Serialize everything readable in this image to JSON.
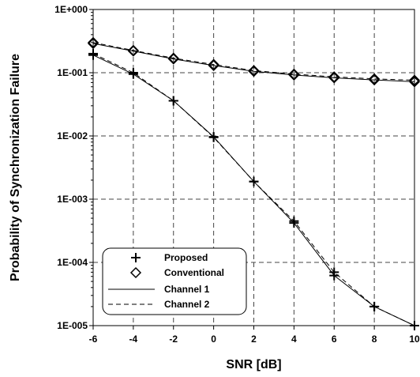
{
  "chart_data": {
    "type": "line",
    "title": "",
    "xlabel": "SNR [dB]",
    "ylabel": "Probability of Synchronization Failure",
    "y_scale": "log",
    "xlim": [
      -6,
      10
    ],
    "ylim": [
      1e-05,
      1
    ],
    "x_ticks": [
      -6,
      -4,
      -2,
      0,
      2,
      4,
      6,
      8,
      10
    ],
    "x_tick_labels": [
      "-6",
      "-4",
      "-2",
      "0",
      "2",
      "4",
      "6",
      "8",
      "10"
    ],
    "y_ticks": [
      1e-05,
      0.0001,
      0.001,
      0.01,
      0.1,
      1
    ],
    "y_tick_labels": [
      "1E-005",
      "1E-004",
      "1E-003",
      "1E-002",
      "1E-001",
      "1E+000"
    ],
    "grid": true,
    "legend_position": "bottom-left",
    "legend": [
      "Proposed",
      "Conventional",
      "Channel 1",
      "Channel 2"
    ],
    "x": [
      -6,
      -4,
      -2,
      0,
      2,
      4,
      6,
      8,
      10
    ],
    "series": [
      {
        "name": "Proposed",
        "channel": "Channel 1",
        "marker": "plus",
        "line": "solid",
        "values": [
          0.19,
          0.095,
          0.036,
          0.0097,
          0.0019,
          0.00042,
          6.2e-05,
          2e-05,
          1e-05
        ]
      },
      {
        "name": "Proposed",
        "channel": "Channel 2",
        "marker": "plus",
        "line": "dashed",
        "values": [
          0.2,
          0.1,
          0.036,
          0.0095,
          0.0019,
          0.00045,
          7e-05,
          2e-05,
          1e-05
        ]
      },
      {
        "name": "Conventional",
        "channel": "Channel 1",
        "marker": "diamond",
        "line": "solid",
        "values": [
          0.29,
          0.22,
          0.165,
          0.13,
          0.105,
          0.092,
          0.083,
          0.077,
          0.072
        ]
      },
      {
        "name": "Conventional",
        "channel": "Channel 2",
        "marker": "diamond",
        "line": "dashed",
        "values": [
          0.3,
          0.225,
          0.17,
          0.135,
          0.108,
          0.095,
          0.086,
          0.08,
          0.076
        ]
      }
    ]
  }
}
